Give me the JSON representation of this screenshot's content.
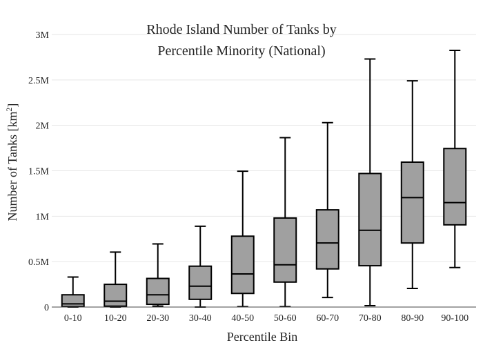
{
  "chart_data": {
    "type": "box",
    "title_lines": [
      "Rhode Island Number of Tanks by",
      "Percentile Minority (National)"
    ],
    "xlabel": "Percentile Bin",
    "ylabel_main": "Number of Tanks  [km",
    "ylabel_sup": "2",
    "ylabel_end": "]",
    "ylim": [
      0,
      3000000
    ],
    "yticks": [
      {
        "value": 0,
        "label": "0"
      },
      {
        "value": 500000,
        "label": "0.5M"
      },
      {
        "value": 1000000,
        "label": "1M"
      },
      {
        "value": 1500000,
        "label": "1.5M"
      },
      {
        "value": 2000000,
        "label": "2M"
      },
      {
        "value": 2500000,
        "label": "2.5M"
      },
      {
        "value": 3000000,
        "label": "3M"
      }
    ],
    "grid": true,
    "box_color": "#a0a0a0",
    "line_color": "#000000",
    "categories": [
      "0-10",
      "10-20",
      "20-30",
      "30-40",
      "40-50",
      "50-60",
      "60-70",
      "70-80",
      "80-90",
      "90-100"
    ],
    "boxes": [
      {
        "min": 0,
        "q1": 5000,
        "median": 35000,
        "q3": 135000,
        "max": 330000
      },
      {
        "min": 0,
        "q1": 10000,
        "median": 65000,
        "q3": 250000,
        "max": 605000
      },
      {
        "min": 10000,
        "q1": 30000,
        "median": 135000,
        "q3": 315000,
        "max": 695000
      },
      {
        "min": 0,
        "q1": 85000,
        "median": 230000,
        "q3": 450000,
        "max": 890000
      },
      {
        "min": 5000,
        "q1": 150000,
        "median": 365000,
        "q3": 780000,
        "max": 1495000
      },
      {
        "min": 5000,
        "q1": 275000,
        "median": 465000,
        "q3": 980000,
        "max": 1865000
      },
      {
        "min": 105000,
        "q1": 420000,
        "median": 705000,
        "q3": 1070000,
        "max": 2030000
      },
      {
        "min": 15000,
        "q1": 455000,
        "median": 845000,
        "q3": 1470000,
        "max": 2730000
      },
      {
        "min": 205000,
        "q1": 705000,
        "median": 1205000,
        "q3": 1595000,
        "max": 2490000
      },
      {
        "min": 435000,
        "q1": 905000,
        "median": 1150000,
        "q3": 1745000,
        "max": 2825000
      }
    ]
  }
}
